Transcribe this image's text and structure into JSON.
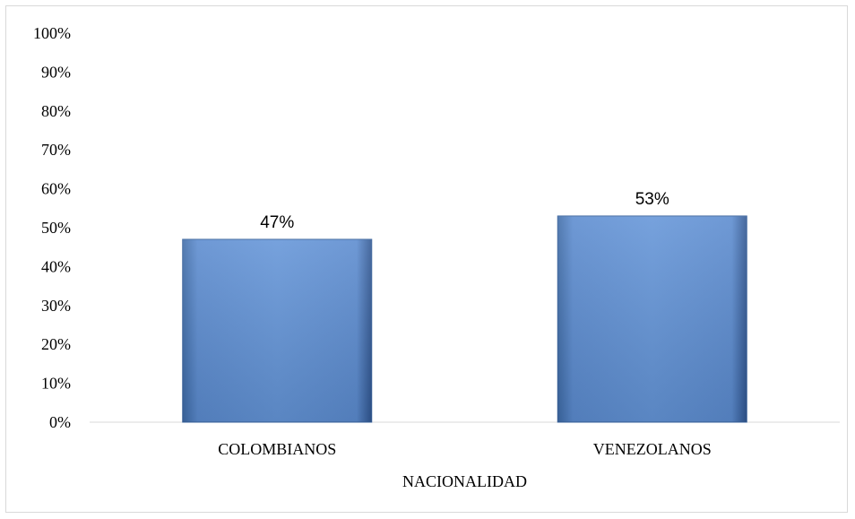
{
  "chart_data": {
    "type": "bar",
    "categories": [
      "COLOMBIANOS",
      "VENEZOLANOS"
    ],
    "values": [
      47,
      53
    ],
    "data_labels": [
      "47%",
      "53%"
    ],
    "title": "",
    "xlabel": "NACIONALIDAD",
    "ylabel": "",
    "ylim": [
      0,
      100
    ],
    "yticks": [
      "0%",
      "10%",
      "20%",
      "30%",
      "40%",
      "50%",
      "60%",
      "70%",
      "80%",
      "90%",
      "100%"
    ],
    "grid": false,
    "legend": "none",
    "bar_color": "#4f81bd"
  }
}
